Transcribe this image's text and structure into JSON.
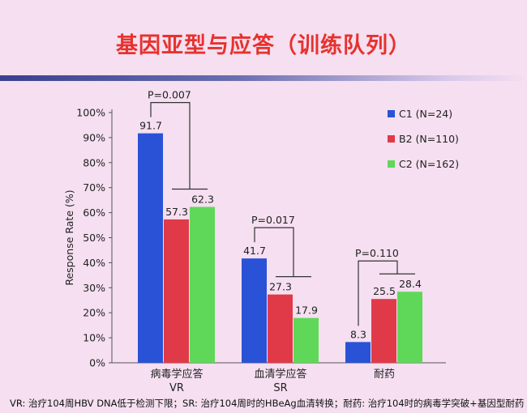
{
  "slide": {
    "title": "基因亚型与应答（训练队列）",
    "footnote": "VR: 治疗104周HBV DNA低于检测下限；SR: 治疗104周时的HBeAg血清转换；耐药: 治疗104时的病毒学突破+基因型耐药"
  },
  "chart_data": {
    "type": "bar",
    "ylabel": "Response Rate (%)",
    "ylim": [
      0,
      100
    ],
    "yticks": [
      "0%",
      "10%",
      "20%",
      "30%",
      "40%",
      "50%",
      "60%",
      "70%",
      "80%",
      "90%",
      "100%"
    ],
    "categories": [
      {
        "line1": "病毒学应答",
        "line2": "VR"
      },
      {
        "line1": "血清学应答",
        "line2": "SR"
      },
      {
        "line1": "耐药",
        "line2": ""
      }
    ],
    "series": [
      {
        "name": "C1 (N=24)",
        "color": "#2a52d6",
        "values": [
          91.7,
          41.7,
          8.3
        ],
        "labels": [
          "91.7",
          "41.7",
          "8.3"
        ]
      },
      {
        "name": "B2 (N=110)",
        "color": "#e03a48",
        "values": [
          57.3,
          27.3,
          25.5
        ],
        "labels": [
          "57.3",
          "27.3",
          "25.5"
        ]
      },
      {
        "name": "C2 (N=162)",
        "color": "#5fd85a",
        "values": [
          62.3,
          17.9,
          28.4
        ],
        "labels": [
          "62.3",
          "17.9",
          "28.4"
        ]
      }
    ],
    "annotations": [
      "P=0.007",
      "P=0.017",
      "P=0.110"
    ],
    "legend_position": "right",
    "grid": false
  }
}
